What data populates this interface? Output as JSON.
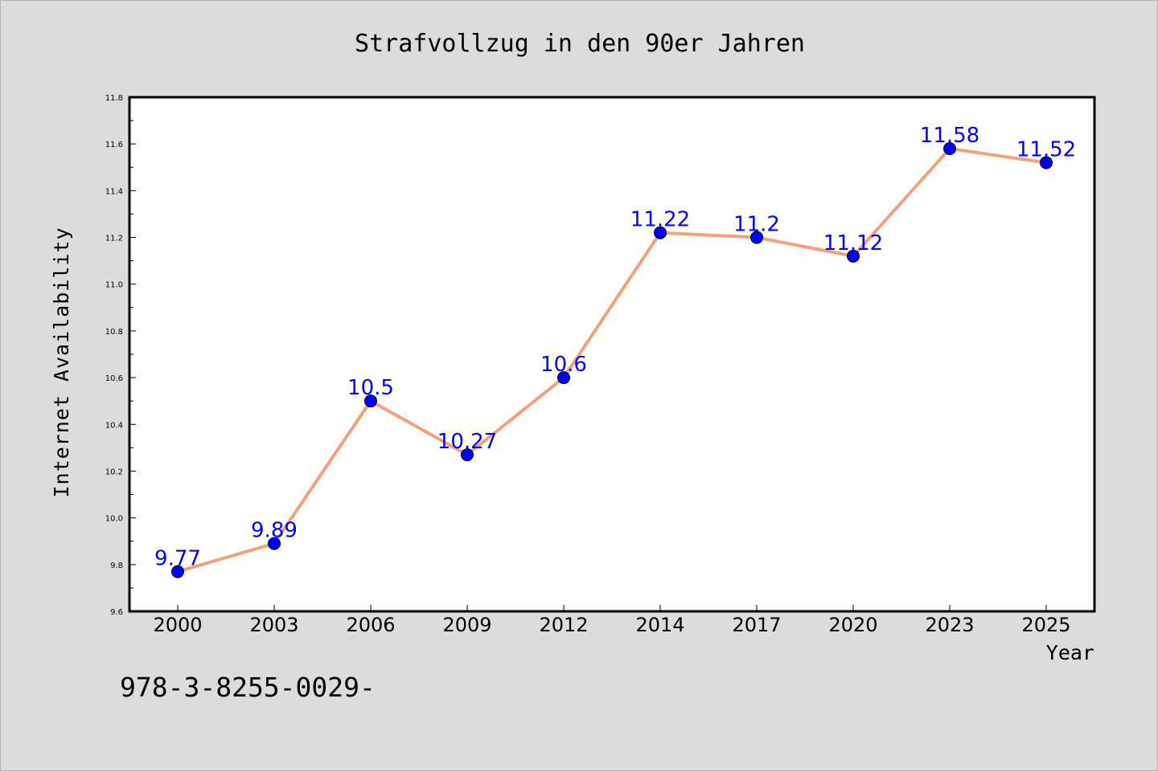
{
  "chart_data": {
    "type": "line",
    "title": "Strafvollzug in den 90er Jahren",
    "xlabel": "Year",
    "ylabel": "Internet Availability",
    "categories": [
      "2000",
      "2003",
      "2006",
      "2009",
      "2012",
      "2014",
      "2017",
      "2020",
      "2023",
      "2025"
    ],
    "series": [
      {
        "values": [
          9.77,
          9.89,
          10.5,
          10.27,
          10.6,
          11.22,
          11.2,
          11.12,
          11.58,
          11.52
        ],
        "labels": [
          "9.77",
          "9.89",
          "10.5",
          "10.27",
          "10.6",
          "11.22",
          "11.2",
          "11.12",
          "11.58",
          "11.52"
        ],
        "line_color": "#f4a07c",
        "marker_color": "#0000ff"
      }
    ],
    "ylim": [
      9.6,
      11.8
    ],
    "yticks": [
      "9.6",
      "9.8",
      "10.0",
      "10.2",
      "10.4",
      "10.6",
      "10.8",
      "11.0",
      "11.2",
      "11.4",
      "11.6",
      "11.8"
    ],
    "grid": false,
    "legend": "none",
    "footer": "978-3-8255-0029-"
  }
}
